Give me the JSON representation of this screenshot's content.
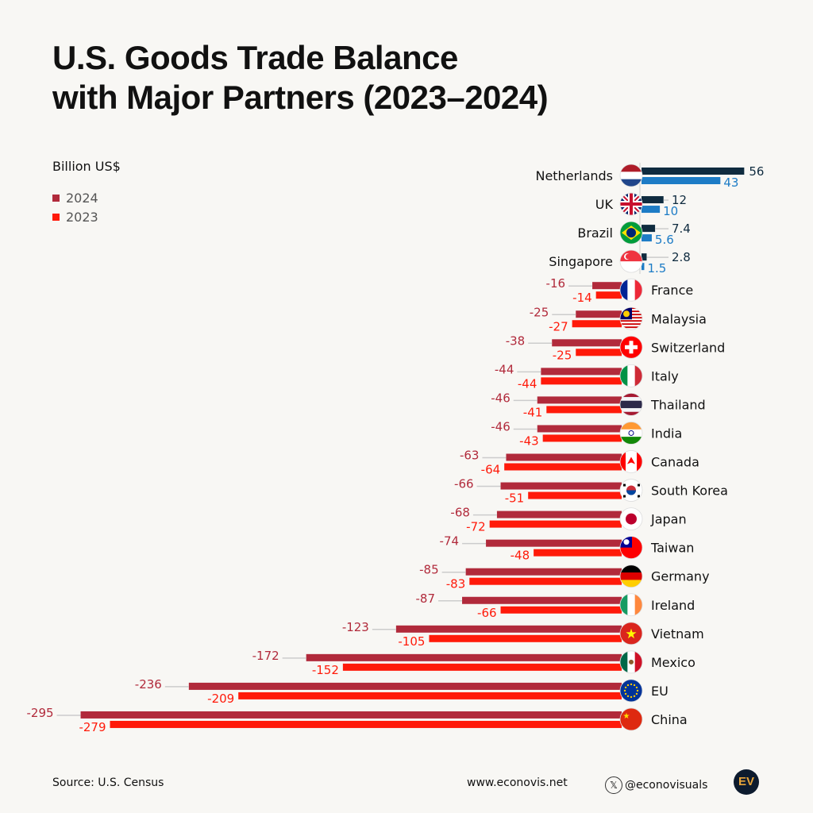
{
  "title_line1": "U.S. Goods Trade Balance",
  "title_line2": "with Major Partners (2023–2024)",
  "unit": "Billion US$",
  "legend": [
    {
      "label": "2024",
      "color": "#b12a3b"
    },
    {
      "label": "2023",
      "color": "#ff1a0a"
    }
  ],
  "colors": {
    "pos2024": "#0f2b3f",
    "pos2023": "#1d7cc6",
    "neg2024": "#b12a3b",
    "neg2023": "#ff1a0a"
  },
  "chart_data": {
    "type": "bar",
    "orientation": "horizontal",
    "categories": [
      "Netherlands",
      "UK",
      "Brazil",
      "Singapore",
      "France",
      "Malaysia",
      "Switzerland",
      "Italy",
      "Thailand",
      "India",
      "Canada",
      "South Korea",
      "Japan",
      "Taiwan",
      "Germany",
      "Ireland",
      "Vietnam",
      "Mexico",
      "EU",
      "China"
    ],
    "series": [
      {
        "name": "2024",
        "values": [
          56,
          12,
          7.4,
          2.8,
          -16,
          -25,
          -38,
          -44,
          -46,
          -46,
          -63,
          -66,
          -68,
          -74,
          -85,
          -87,
          -123,
          -172,
          -236,
          -295
        ]
      },
      {
        "name": "2023",
        "values": [
          43,
          10,
          5.6,
          1.5,
          -14,
          -27,
          -25,
          -44,
          -41,
          -43,
          -64,
          -51,
          -72,
          -48,
          -83,
          -66,
          -105,
          -152,
          -209,
          -279
        ]
      }
    ],
    "labels2024": [
      "56",
      "12",
      "7.4",
      "2.8",
      "-16",
      "-25",
      "-38",
      "-44",
      "-46",
      "-46",
      "-63",
      "-66",
      "-68",
      "-74",
      "-85",
      "-87",
      "-123",
      "-172",
      "-236",
      "-295"
    ],
    "labels2023": [
      "43",
      "10",
      "5.6",
      "1.5",
      "-14",
      "-27",
      "-25",
      "-44",
      "-41",
      "-43",
      "-64",
      "-51",
      "-72",
      "-48",
      "-83",
      "-66",
      "-105",
      "-152",
      "-209",
      "-279"
    ],
    "flags": [
      "netherlands-flag",
      "uk-flag",
      "brazil-flag",
      "singapore-flag",
      "france-flag",
      "malaysia-flag",
      "switzerland-flag",
      "italy-flag",
      "thailand-flag",
      "india-flag",
      "canada-flag",
      "south-korea-flag",
      "japan-flag",
      "taiwan-flag",
      "germany-flag",
      "ireland-flag",
      "vietnam-flag",
      "mexico-flag",
      "eu-flag",
      "china-flag"
    ],
    "xlabel": "",
    "ylabel": "",
    "grid": false,
    "legend_position": "top-left"
  },
  "footer": {
    "source": "Source: U.S. Census",
    "website": "www.econovis.net",
    "handle": "@econovisuals",
    "logo": "EV"
  }
}
